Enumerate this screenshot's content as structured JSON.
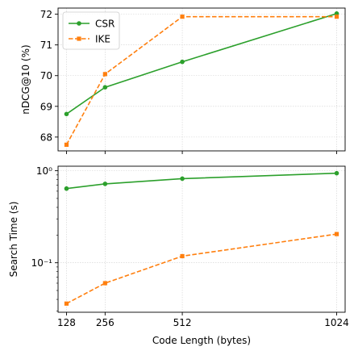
{
  "chart_data": [
    {
      "type": "line",
      "ylabel": "nDCG@10 (%)",
      "xlabel": "",
      "yscale": "linear",
      "ylim": [
        67.55,
        72.2
      ],
      "xlim": [
        100,
        1052
      ],
      "yticks": [
        68,
        69,
        70,
        71,
        72
      ],
      "grid": true,
      "legend": "top-left",
      "x": [
        128,
        256,
        512,
        1024
      ],
      "series": [
        {
          "name": "CSR",
          "values": [
            68.75,
            69.62,
            70.45,
            72.02
          ],
          "color": "#2ca02c",
          "linestyle": "solid",
          "marker": "circle"
        },
        {
          "name": "IKE",
          "values": [
            67.75,
            70.05,
            71.92,
            71.92
          ],
          "color": "#ff7f0e",
          "linestyle": "dashed",
          "marker": "square"
        }
      ]
    },
    {
      "type": "line",
      "ylabel": "Search Time (s)",
      "xlabel": "Code Length (bytes)",
      "yscale": "log",
      "ylim": [
        0.029,
        1.12
      ],
      "xlim": [
        100,
        1052
      ],
      "yticks": [
        0.1,
        1
      ],
      "ytick_labels": [
        "10⁻¹",
        "10⁰"
      ],
      "xticks": [
        128,
        256,
        512,
        1024
      ],
      "xtick_labels": [
        "128",
        "256",
        "512",
        "1024"
      ],
      "grid": true,
      "x": [
        128,
        256,
        512,
        1024
      ],
      "series": [
        {
          "name": "CSR",
          "values": [
            0.64,
            0.72,
            0.82,
            0.94
          ],
          "color": "#2ca02c",
          "linestyle": "solid",
          "marker": "circle"
        },
        {
          "name": "IKE",
          "values": [
            0.036,
            0.06,
            0.118,
            0.205
          ],
          "color": "#ff7f0e",
          "linestyle": "dashed",
          "marker": "square"
        }
      ]
    }
  ]
}
